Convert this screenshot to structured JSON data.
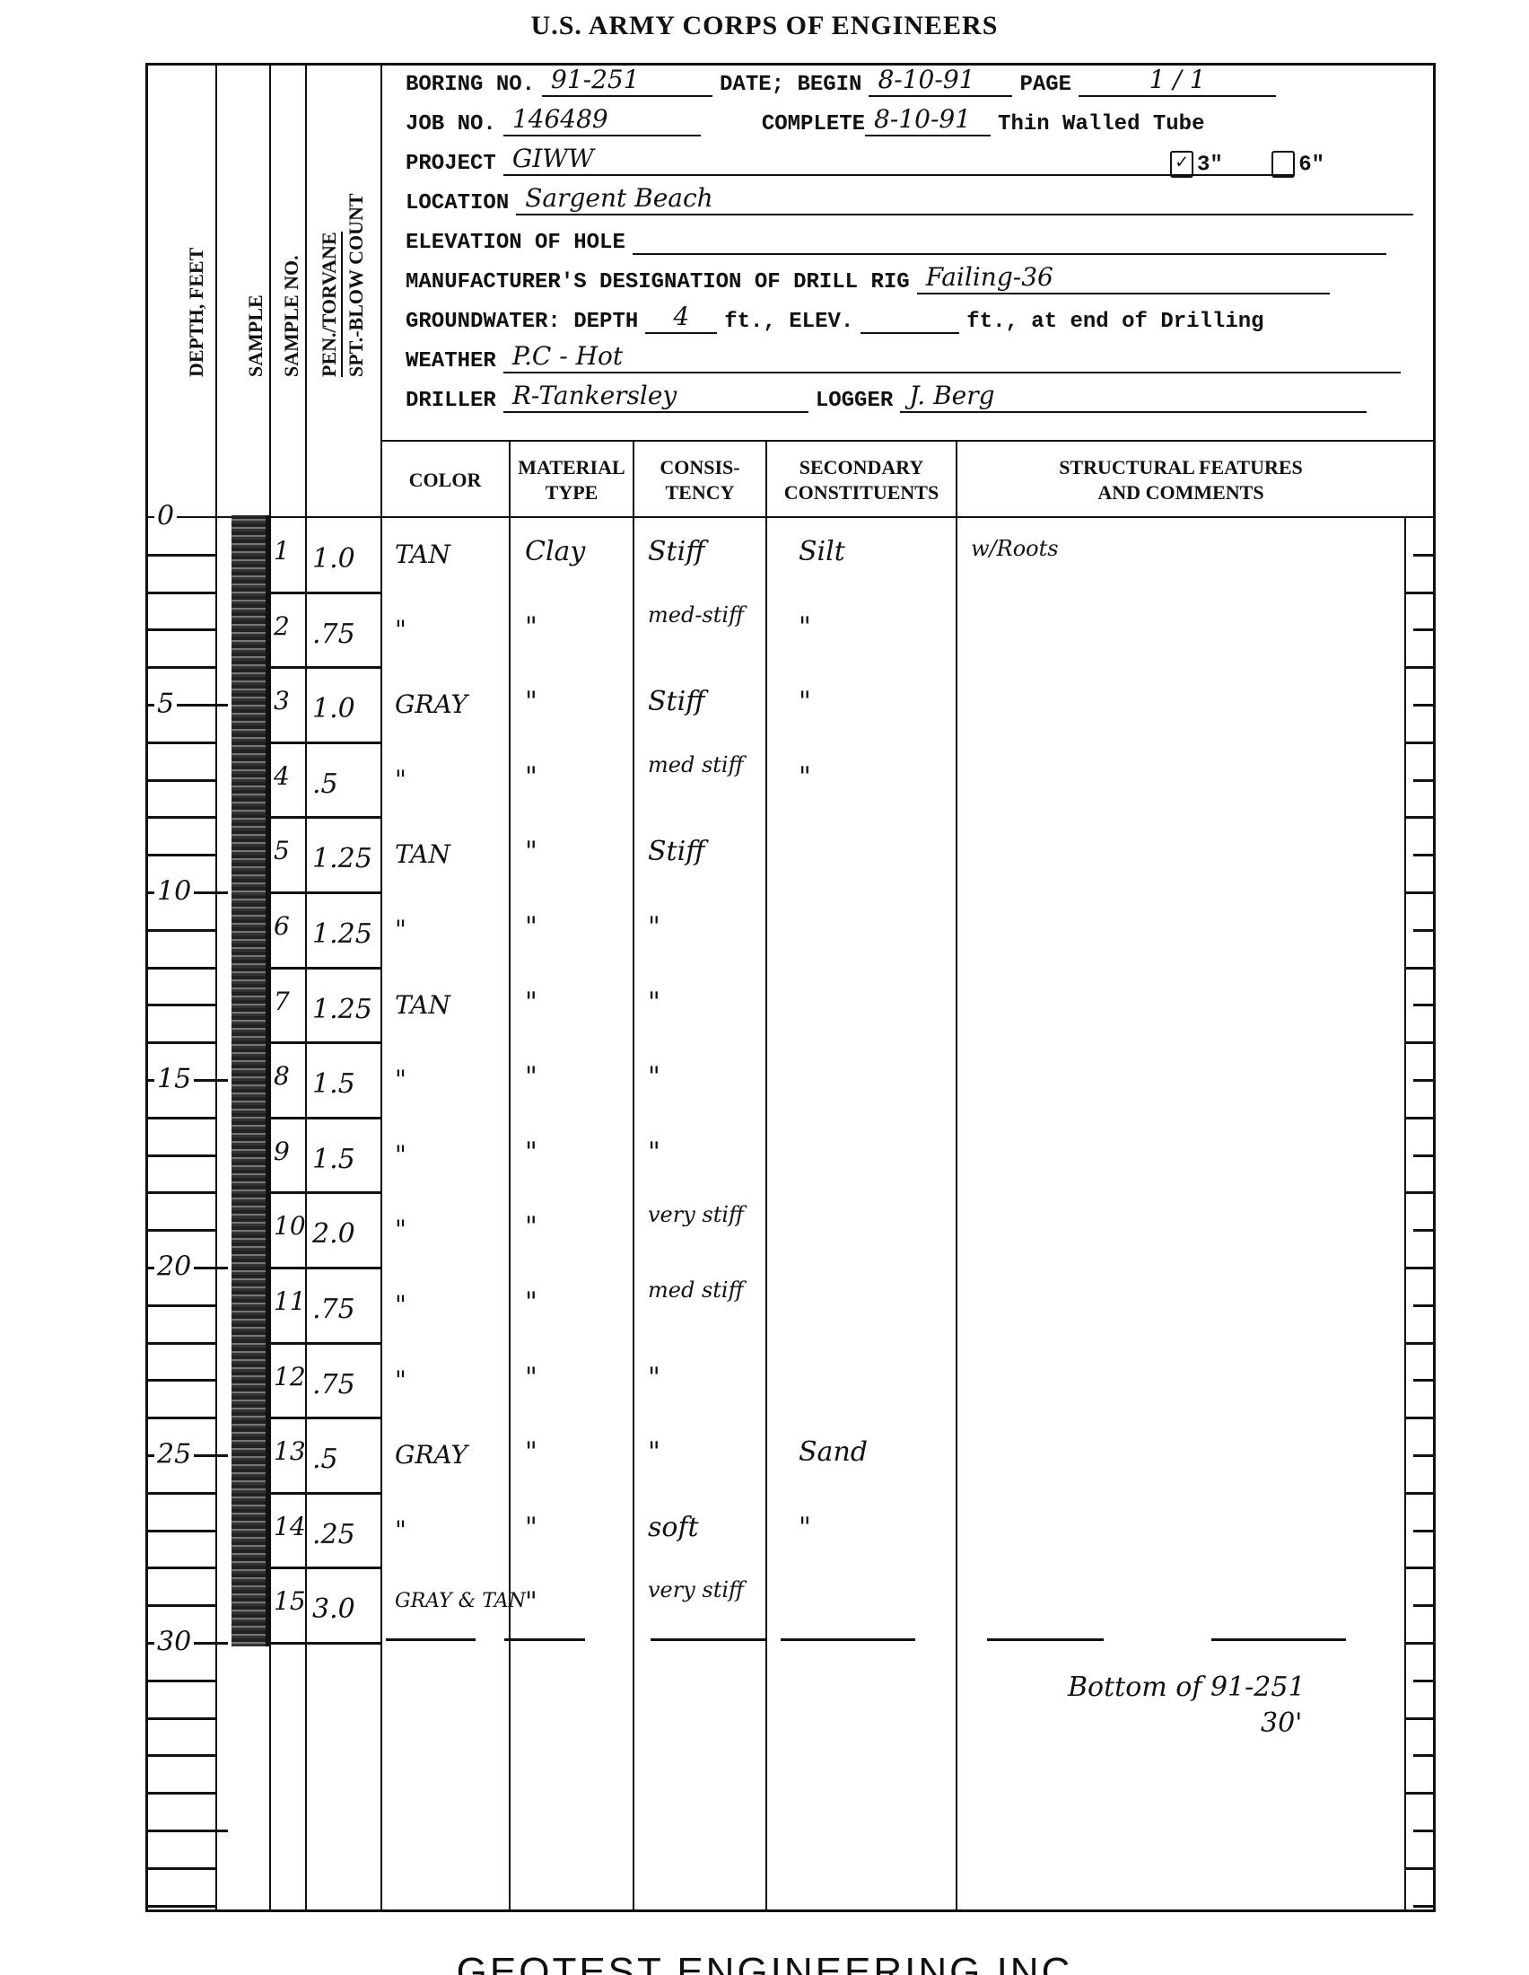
{
  "title": "U.S. ARMY CORPS OF ENGINEERS",
  "footer": "GEOTEST ENGINEERING INC",
  "header": {
    "boring_no_label": "BORING NO.",
    "boring_no": "91-251",
    "date_begin_label": "DATE; BEGIN",
    "date_begin": "8-10-91",
    "page_label": "PAGE",
    "page": "1 / 1",
    "job_no_label": "JOB NO.",
    "job_no": "146489",
    "complete_label": "COMPLETE",
    "complete": "8-10-91",
    "tube_label": "Thin Walled Tube",
    "tube_3_label": "3\"",
    "tube_3_checked": true,
    "tube_6_label": "6\"",
    "tube_6_checked": false,
    "project_label": "PROJECT",
    "project": "GIWW",
    "location_label": "LOCATION",
    "location": "Sargent Beach",
    "elevation_label": "ELEVATION OF HOLE",
    "elevation": "",
    "rig_label": "MANUFACTURER'S DESIGNATION OF DRILL RIG",
    "rig": "Failing-36",
    "gw_label": "GROUNDWATER: DEPTH",
    "gw_depth": "4",
    "gw_ft_elev": "ft., ELEV.",
    "gw_elev": "",
    "gw_end": "ft., at end of Drilling",
    "weather_label": "WEATHER",
    "weather": "P.C - Hot",
    "driller_label": "DRILLER",
    "driller": "R-Tankersley",
    "logger_label": "LOGGER",
    "logger": "J. Berg"
  },
  "left_headers": {
    "depth": "DEPTH, FEET",
    "sample": "SAMPLE",
    "sample_no": "SAMPLE NO.",
    "pen": "PEN./TORVANE",
    "spt": "SPT.-BLOW COUNT"
  },
  "columns": {
    "color": "COLOR",
    "material_1": "MATERIAL",
    "material_2": "TYPE",
    "consistency_1": "CONSIS-",
    "consistency_2": "TENCY",
    "secondary_1": "SECONDARY",
    "secondary_2": "CONSTITUENTS",
    "structural_1": "STRUCTURAL FEATURES",
    "structural_2": "AND COMMENTS"
  },
  "depth_labels": [
    "0",
    "5",
    "10",
    "15",
    "20",
    "25",
    "30"
  ],
  "samples": [
    {
      "no": "1",
      "pen": "1.0",
      "color": "TAN",
      "material": "Clay",
      "consistency": "Stiff",
      "secondary": "Silt",
      "comment": "w/Roots"
    },
    {
      "no": "2",
      "pen": ".75",
      "color": "\"",
      "material": "\"",
      "consistency": "med-stiff",
      "secondary": "\"",
      "comment": ""
    },
    {
      "no": "3",
      "pen": "1.0",
      "color": "GRAY",
      "material": "\"",
      "consistency": "Stiff",
      "secondary": "\"",
      "comment": ""
    },
    {
      "no": "4",
      "pen": ".5",
      "color": "\"",
      "material": "\"",
      "consistency": "med stiff",
      "secondary": "\"",
      "comment": ""
    },
    {
      "no": "5",
      "pen": "1.25",
      "color": "TAN",
      "material": "\"",
      "consistency": "Stiff",
      "secondary": "",
      "comment": ""
    },
    {
      "no": "6",
      "pen": "1.25",
      "color": "\"",
      "material": "\"",
      "consistency": "\"",
      "secondary": "",
      "comment": ""
    },
    {
      "no": "7",
      "pen": "1.25",
      "color": "TAN",
      "material": "\"",
      "consistency": "\"",
      "secondary": "",
      "comment": ""
    },
    {
      "no": "8",
      "pen": "1.5",
      "color": "\"",
      "material": "\"",
      "consistency": "\"",
      "secondary": "",
      "comment": ""
    },
    {
      "no": "9",
      "pen": "1.5",
      "color": "\"",
      "material": "\"",
      "consistency": "\"",
      "secondary": "",
      "comment": ""
    },
    {
      "no": "10",
      "pen": "2.0",
      "color": "\"",
      "material": "\"",
      "consistency": "very stiff",
      "secondary": "",
      "comment": ""
    },
    {
      "no": "11",
      "pen": ".75",
      "color": "\"",
      "material": "\"",
      "consistency": "med stiff",
      "secondary": "",
      "comment": ""
    },
    {
      "no": "12",
      "pen": ".75",
      "color": "\"",
      "material": "\"",
      "consistency": "\"",
      "secondary": "",
      "comment": ""
    },
    {
      "no": "13",
      "pen": ".5",
      "color": "GRAY",
      "material": "\"",
      "consistency": "\"",
      "secondary": "Sand",
      "comment": ""
    },
    {
      "no": "14",
      "pen": ".25",
      "color": "\"",
      "material": "\"",
      "consistency": "soft",
      "secondary": "\"",
      "comment": ""
    },
    {
      "no": "15",
      "pen": "3.0",
      "color": "GRAY & TAN",
      "material": "\"",
      "consistency": "very stiff",
      "secondary": "",
      "comment": ""
    }
  ],
  "bottom_note": "Bottom of 91-251",
  "bottom_depth": "30'"
}
